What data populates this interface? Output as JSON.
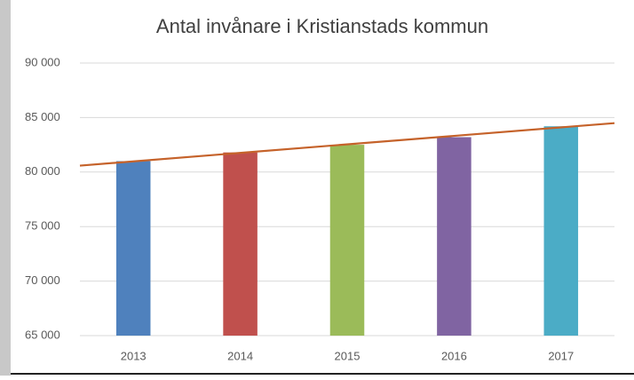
{
  "chart_data": {
    "type": "bar",
    "title": "Antal invånare i Kristianstads kommun",
    "categories": [
      "2013",
      "2014",
      "2015",
      "2016",
      "2017"
    ],
    "values": [
      81000,
      81800,
      82500,
      83200,
      84200
    ],
    "colors": [
      "#4f81bd",
      "#c0504d",
      "#9bbb59",
      "#8064a2",
      "#4bacc6"
    ],
    "ylim": [
      65000,
      90000
    ],
    "yticks": [
      {
        "value": 65000,
        "label": "65 000"
      },
      {
        "value": 70000,
        "label": "70 000"
      },
      {
        "value": 75000,
        "label": "75 000"
      },
      {
        "value": 80000,
        "label": "80 000"
      },
      {
        "value": 85000,
        "label": "85 000"
      },
      {
        "value": 90000,
        "label": "90 000"
      }
    ],
    "grid": true,
    "trendline": true,
    "trendline_color": "#c5622a"
  }
}
